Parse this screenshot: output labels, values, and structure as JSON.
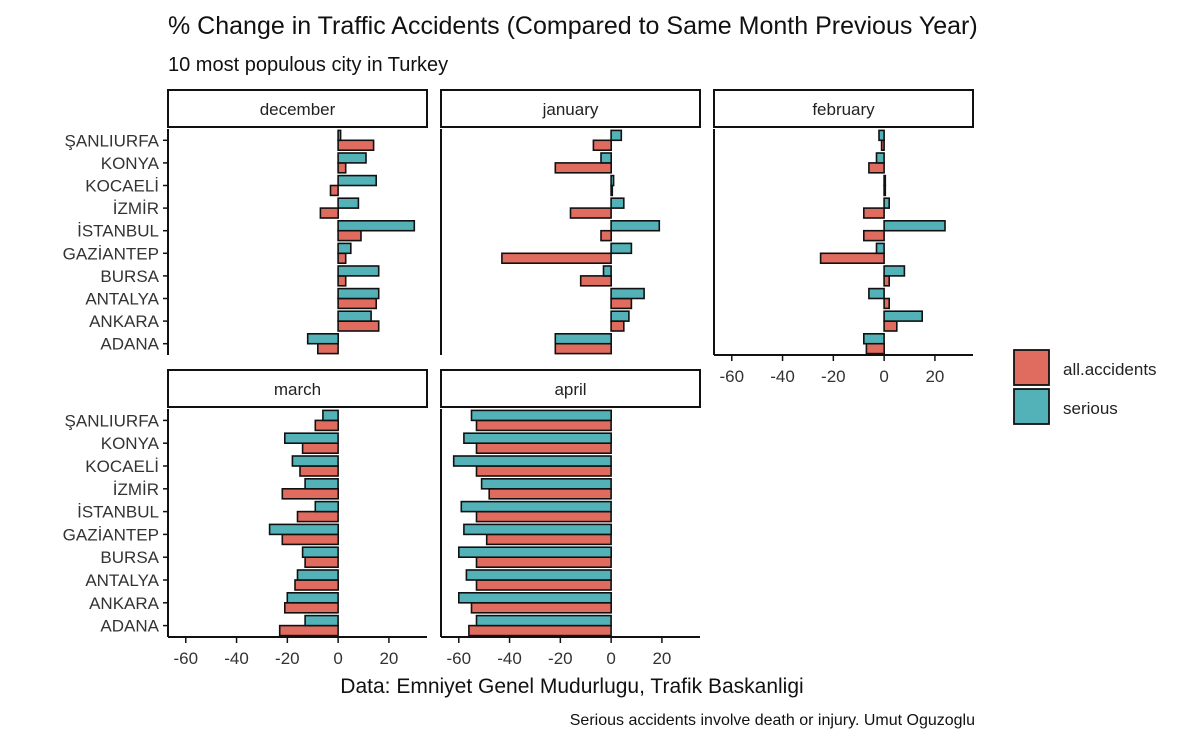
{
  "chart_data": {
    "type": "bar",
    "orientation": "horizontal",
    "title": "% Change in Traffic Accidents (Compared to Same Month Previous Year)",
    "subtitle": "10 most populous city in Turkey",
    "xlabel": "Data: Emniyet Genel Mudurlugu, Trafik Baskanligi",
    "caption": "Serious accidents involve death or injury. Umut Oguzoglu",
    "xlim": [
      -67,
      35
    ],
    "xticks": [
      -60,
      -40,
      -20,
      0,
      20
    ],
    "xtick_labels": [
      "-60",
      "-40",
      "-20",
      "0",
      "20"
    ],
    "categories": [
      "ŞANLIURFA",
      "KONYA",
      "KOCAELİ",
      "İZMİR",
      "İSTANBUL",
      "GAZİANTEP",
      "BURSA",
      "ANTALYA",
      "ANKARA",
      "ADANA"
    ],
    "legend": {
      "position": "right",
      "items": [
        {
          "name": "all.accidents",
          "color": "#e06b5f"
        },
        {
          "name": "serious",
          "color": "#52b2b8"
        }
      ]
    },
    "panels": [
      {
        "name": "december",
        "series": [
          {
            "name": "all.accidents",
            "values": [
              14,
              3,
              -3,
              -7,
              9,
              3,
              3,
              15,
              16,
              -8
            ]
          },
          {
            "name": "serious",
            "values": [
              1,
              11,
              15,
              8,
              30,
              5,
              16,
              16,
              13,
              -12
            ]
          }
        ]
      },
      {
        "name": "january",
        "series": [
          {
            "name": "all.accidents",
            "values": [
              -7,
              -22,
              0,
              -16,
              -4,
              -43,
              -12,
              8,
              5,
              -22
            ]
          },
          {
            "name": "serious",
            "values": [
              4,
              -4,
              1,
              5,
              19,
              8,
              -3,
              13,
              7,
              -22
            ]
          }
        ]
      },
      {
        "name": "february",
        "series": [
          {
            "name": "all.accidents",
            "values": [
              -1,
              -6,
              0,
              -8,
              -8,
              -25,
              2,
              2,
              5,
              -7
            ]
          },
          {
            "name": "serious",
            "values": [
              -2,
              -3,
              0,
              2,
              24,
              -3,
              8,
              -6,
              15,
              -8
            ]
          }
        ]
      },
      {
        "name": "march",
        "series": [
          {
            "name": "all.accidents",
            "values": [
              -9,
              -14,
              -15,
              -22,
              -16,
              -22,
              -13,
              -17,
              -21,
              -23
            ]
          },
          {
            "name": "serious",
            "values": [
              -6,
              -21,
              -18,
              -13,
              -9,
              -27,
              -14,
              -16,
              -20,
              -13
            ]
          }
        ]
      },
      {
        "name": "april",
        "series": [
          {
            "name": "all.accidents",
            "values": [
              -53,
              -53,
              -53,
              -48,
              -53,
              -49,
              -53,
              -53,
              -55,
              -56
            ]
          },
          {
            "name": "serious",
            "values": [
              -55,
              -58,
              -62,
              -51,
              -59,
              -58,
              -60,
              -57,
              -60,
              -53
            ]
          }
        ]
      }
    ]
  }
}
